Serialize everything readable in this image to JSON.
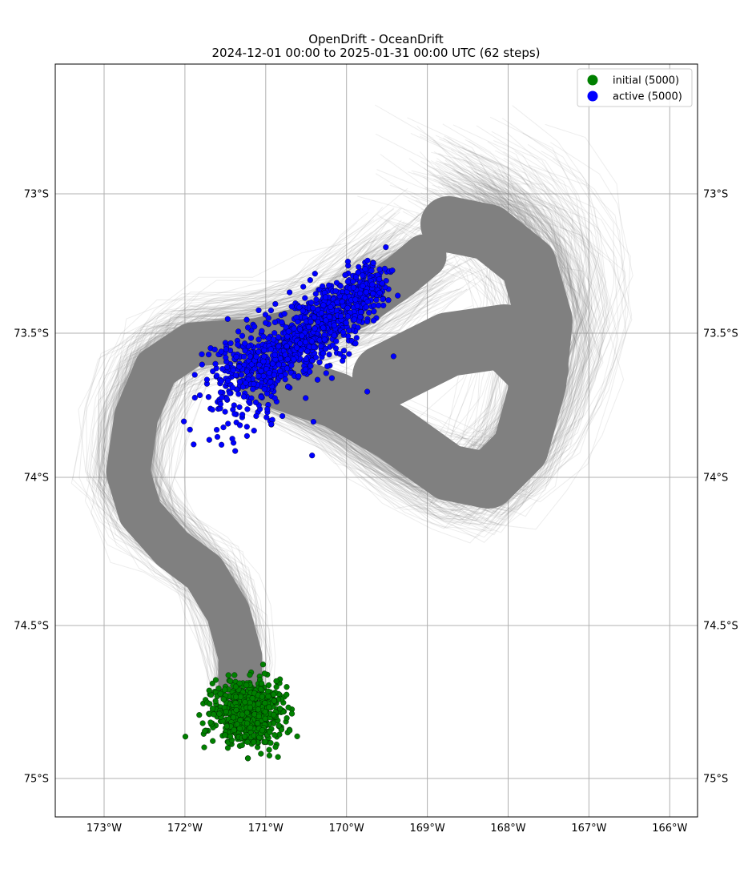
{
  "title": {
    "line1": "OpenDrift - OceanDrift",
    "line2": "2024-12-01 00:00 to 2025-01-31 00:00 UTC (62 steps)"
  },
  "chart_data": {
    "type": "scatter",
    "map_extent": {
      "lon_range": [
        -173.6,
        -165.64
      ],
      "lat_range": [
        -75.13,
        -72.55
      ]
    },
    "x_ticks": [
      "173°W",
      "172°W",
      "171°W",
      "170°W",
      "169°W",
      "168°W",
      "167°W",
      "166°W"
    ],
    "x_tick_values": [
      -173,
      -172,
      -171,
      -170,
      -169,
      -168,
      -167,
      -166
    ],
    "y_ticks": [
      "73°S",
      "73.5°S",
      "74°S",
      "74.5°S",
      "75°S"
    ],
    "y_tick_values": [
      -73,
      -73.5,
      -74,
      -74.5,
      -75
    ],
    "grid": true,
    "legend_position": "top-right",
    "series": [
      {
        "name": "initial (5000)",
        "color": "#008000",
        "count": 5000,
        "center_lon": -171.2,
        "center_lat": -74.79,
        "spread_lon": 0.22,
        "spread_lat": 0.055
      },
      {
        "name": "active (5000)",
        "color": "#0000ff",
        "count": 5000,
        "center_lon": -170.8,
        "center_lat": -73.6,
        "spread_lon": 0.5,
        "spread_lat": 0.12
      }
    ],
    "trajectories_color": "#808080"
  }
}
